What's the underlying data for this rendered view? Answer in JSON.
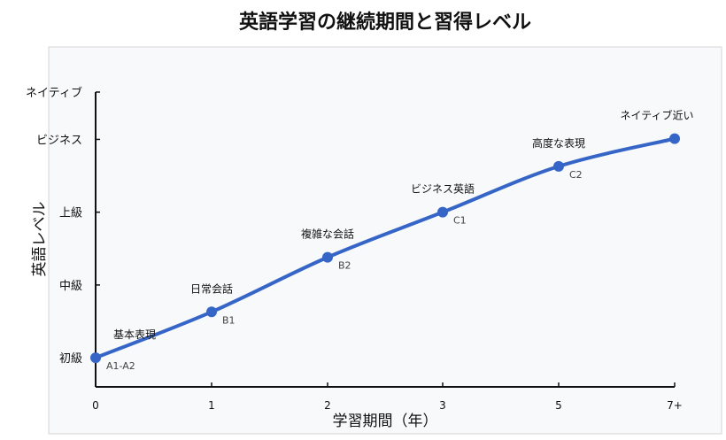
{
  "chart_data": {
    "type": "line",
    "title": "英語学習の継続期間と習得レベル",
    "xlabel": "学習期間（年）",
    "ylabel": "英語レベル",
    "categories": [
      "0",
      "1",
      "2",
      "3",
      "5",
      "7+"
    ],
    "y_ticks": [
      {
        "label": "初級",
        "value": 1
      },
      {
        "label": "中級",
        "value": 2
      },
      {
        "label": "上級",
        "value": 3
      },
      {
        "label": "ビジネス",
        "value": 4
      },
      {
        "label": "ネイティブ",
        "value": 4.65
      }
    ],
    "ylim": [
      0.6,
      4.65
    ],
    "points": [
      {
        "x": "0",
        "y": 1.0,
        "annotation": "基本表現",
        "level": "A1-A2"
      },
      {
        "x": "1",
        "y": 1.63,
        "annotation": "日常会話",
        "level": "B1"
      },
      {
        "x": "2",
        "y": 2.38,
        "annotation": "複雑な会話",
        "level": "B2"
      },
      {
        "x": "3",
        "y": 3.0,
        "annotation": "ビジネス英語",
        "level": "C1"
      },
      {
        "x": "5",
        "y": 3.63,
        "annotation": "高度な表現",
        "level": "C2"
      },
      {
        "x": "7+",
        "y": 4.01,
        "annotation": "ネイティブ近い",
        "level": ""
      }
    ],
    "colors": {
      "line": "#3565c7",
      "point": "#3565c7",
      "plot_background": "#f8f9fb",
      "plot_border": "#d4d4d4"
    },
    "grid": false
  }
}
